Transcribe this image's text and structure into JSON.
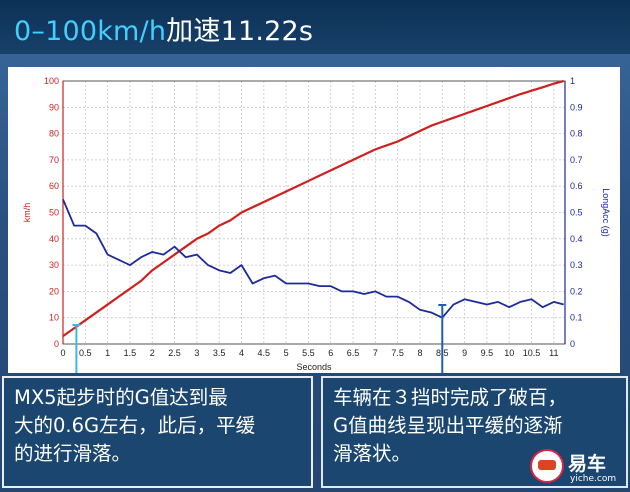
{
  "header": {
    "title_highlight": "0–100km/h",
    "title_rest": "加速11.22s"
  },
  "chart_data": {
    "type": "line",
    "x": [
      0,
      0.25,
      0.5,
      0.75,
      1,
      1.25,
      1.5,
      1.75,
      2,
      2.25,
      2.5,
      2.75,
      3,
      3.25,
      3.5,
      3.75,
      4,
      4.25,
      4.5,
      4.75,
      5,
      5.25,
      5.5,
      5.75,
      6,
      6.25,
      6.5,
      6.75,
      7,
      7.25,
      7.5,
      7.75,
      8,
      8.25,
      8.5,
      8.75,
      9,
      9.25,
      9.5,
      9.75,
      10,
      10.25,
      10.5,
      10.75,
      11,
      11.22
    ],
    "series": [
      {
        "axis": "left",
        "color": "#d01f1f",
        "values": [
          3,
          6,
          9,
          12,
          15,
          18,
          21,
          24,
          28,
          31,
          34,
          37,
          40,
          42,
          45,
          47,
          50,
          52,
          54,
          56,
          58,
          60,
          62,
          64,
          66,
          68,
          70,
          72,
          74,
          75.5,
          77,
          79,
          81,
          83,
          84.5,
          86,
          87.5,
          89,
          90.5,
          92,
          93.5,
          95,
          96.3,
          97.6,
          99,
          100
        ]
      },
      {
        "axis": "right",
        "color": "#1c2a9e",
        "values": [
          0.55,
          0.45,
          0.45,
          0.42,
          0.34,
          0.32,
          0.3,
          0.33,
          0.35,
          0.34,
          0.37,
          0.33,
          0.34,
          0.3,
          0.28,
          0.27,
          0.3,
          0.23,
          0.25,
          0.26,
          0.23,
          0.23,
          0.23,
          0.22,
          0.22,
          0.2,
          0.2,
          0.19,
          0.2,
          0.18,
          0.18,
          0.16,
          0.13,
          0.12,
          0.1,
          0.15,
          0.17,
          0.16,
          0.15,
          0.16,
          0.14,
          0.16,
          0.17,
          0.14,
          0.16,
          0.15
        ]
      }
    ],
    "xlabel": "Seconds",
    "ylabel_left": "km/h",
    "ylabel_right": "LongAcc (g)",
    "xlim": [
      0,
      11.25
    ],
    "ylim_left": [
      0,
      100
    ],
    "ylim_right": [
      0,
      1
    ],
    "x_ticks": [
      "0",
      "0.5",
      "1",
      "1.5",
      "2",
      "2.5",
      "3",
      "3.5",
      "4",
      "4.5",
      "5",
      "5.5",
      "6",
      "6.5",
      "7",
      "7.5",
      "8",
      "8.5",
      "9",
      "9.5",
      "10",
      "10.5",
      "11"
    ],
    "y_ticks_left": [
      "0",
      "10",
      "20",
      "30",
      "40",
      "50",
      "60",
      "70",
      "80",
      "90",
      "100"
    ],
    "y_ticks_right": [
      "0",
      "0.1",
      "0.2",
      "0.3",
      "0.4",
      "0.5",
      "0.6",
      "0.7",
      "0.8",
      "0.9",
      "1"
    ],
    "grid": true,
    "annotations": [
      {
        "at_x": 0.3,
        "color": "#3fb6e8"
      },
      {
        "at_x": 8.5,
        "color": "#1d5fb8"
      }
    ]
  },
  "captions": {
    "left": [
      "MX5起步时的G值达到最",
      "大的0.6G左右，此后，平缓",
      "的进行滑落。"
    ],
    "right": [
      "车辆在３挡时完成了破百，",
      "G值曲线呈现出平缓的逐渐",
      "滑落状。"
    ]
  },
  "logo": {
    "name": "易车",
    "domain": "yiche.com"
  }
}
